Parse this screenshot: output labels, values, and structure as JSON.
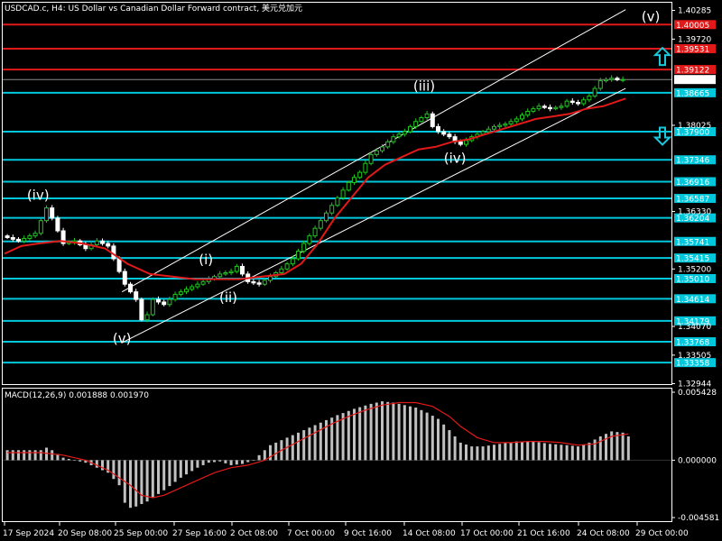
{
  "header": {
    "title": "USDCAD.c, H4:  US Dollar vs Canadian Dollar Forward contract, 美元兑加元"
  },
  "colors": {
    "background": "#000000",
    "cyan_level": "#00c8dc",
    "red_level": "#e11919",
    "bull_candle": "#22c322",
    "bear_candle": "#ffffff",
    "ma_line": "#e11919",
    "channel": "#ffffff",
    "macd_hist": "#c0c0c0",
    "macd_signal": "#e11919",
    "arrow": "#19c8dc"
  },
  "chart_data": [
    {
      "type": "candlestick",
      "symbol": "USDCAD.c",
      "timeframe": "H4",
      "ylim": [
        1.32944,
        1.40285
      ],
      "x_tick_labels": [
        "17 Sep 2024",
        "20 Sep 08:00",
        "25 Sep 00:00",
        "27 Sep 16:00",
        "2 Oct 08:00",
        "7 Oct 00:00",
        "9 Oct 16:00",
        "14 Oct 08:00",
        "17 Oct 00:00",
        "21 Oct 16:00",
        "24 Oct 08:00",
        "29 Oct 00:00"
      ],
      "price_ticks": [
        "1.40285",
        "1.39720",
        "1.38025",
        "1.36330",
        "1.35200",
        "1.34070",
        "1.33505",
        "1.32944"
      ],
      "current_price": "1.38925",
      "levels": [
        {
          "price": 1.40005,
          "label": "1.40005",
          "color": "red"
        },
        {
          "price": 1.39531,
          "label": "1.39531",
          "color": "red"
        },
        {
          "price": 1.39122,
          "label": "1.39122",
          "color": "red"
        },
        {
          "price": 1.38665,
          "label": "1.38665",
          "color": "cyan"
        },
        {
          "price": 1.379,
          "label": "1.37900",
          "color": "cyan"
        },
        {
          "price": 1.37346,
          "label": "1.37346",
          "color": "cyan"
        },
        {
          "price": 1.36916,
          "label": "1.36916",
          "color": "cyan"
        },
        {
          "price": 1.36587,
          "label": "1.36587",
          "color": "cyan"
        },
        {
          "price": 1.36204,
          "label": "1.36204",
          "color": "cyan"
        },
        {
          "price": 1.35741,
          "label": "1.35741",
          "color": "cyan"
        },
        {
          "price": 1.35415,
          "label": "1.35415",
          "color": "cyan"
        },
        {
          "price": 1.3501,
          "label": "1.35010",
          "color": "cyan"
        },
        {
          "price": 1.34614,
          "label": "1.34614",
          "color": "cyan"
        },
        {
          "price": 1.34179,
          "label": "1.34179",
          "color": "cyan"
        },
        {
          "price": 1.33768,
          "label": "1.33768",
          "color": "cyan"
        },
        {
          "price": 1.33358,
          "label": "1.33358",
          "color": "cyan"
        }
      ],
      "price_path": [
        [
          0,
          1.3585
        ],
        [
          3,
          1.3575
        ],
        [
          6,
          1.359
        ],
        [
          8,
          1.364
        ],
        [
          9,
          1.362
        ],
        [
          11,
          1.357
        ],
        [
          13,
          1.3575
        ],
        [
          15,
          1.356
        ],
        [
          17,
          1.3575
        ],
        [
          19,
          1.3565
        ],
        [
          20,
          1.354
        ],
        [
          22,
          1.349
        ],
        [
          24,
          1.346
        ],
        [
          25,
          1.342
        ],
        [
          26,
          1.343
        ],
        [
          27,
          1.346
        ],
        [
          29,
          1.345
        ],
        [
          31,
          1.347
        ],
        [
          33,
          1.348
        ],
        [
          35,
          1.349
        ],
        [
          37,
          1.35
        ],
        [
          39,
          1.351
        ],
        [
          41,
          1.3515
        ],
        [
          42,
          1.3525
        ],
        [
          43,
          1.351
        ],
        [
          44,
          1.3495
        ],
        [
          46,
          1.349
        ],
        [
          48,
          1.3505
        ],
        [
          50,
          1.352
        ],
        [
          52,
          1.354
        ],
        [
          54,
          1.357
        ],
        [
          56,
          1.36
        ],
        [
          58,
          1.363
        ],
        [
          60,
          1.366
        ],
        [
          62,
          1.369
        ],
        [
          64,
          1.371
        ],
        [
          66,
          1.3745
        ],
        [
          68,
          1.376
        ],
        [
          70,
          1.378
        ],
        [
          72,
          1.379
        ],
        [
          74,
          1.381
        ],
        [
          76,
          1.3825
        ],
        [
          77,
          1.38
        ],
        [
          78,
          1.379
        ],
        [
          80,
          1.378
        ],
        [
          81,
          1.377
        ],
        [
          82,
          1.3765
        ],
        [
          84,
          1.378
        ],
        [
          86,
          1.379
        ],
        [
          88,
          1.38
        ],
        [
          90,
          1.3805
        ],
        [
          92,
          1.3815
        ],
        [
          94,
          1.383
        ],
        [
          96,
          1.384
        ],
        [
          98,
          1.3835
        ],
        [
          100,
          1.384
        ],
        [
          101,
          1.385
        ],
        [
          103,
          1.3845
        ],
        [
          105,
          1.386
        ],
        [
          106,
          1.3875
        ],
        [
          107,
          1.389
        ],
        [
          109,
          1.3895
        ],
        [
          110,
          1.3892
        ],
        [
          111,
          1.38925
        ]
      ],
      "moving_average_path": [
        [
          0,
          1.355
        ],
        [
          3,
          1.3565
        ],
        [
          6,
          1.357
        ],
        [
          10,
          1.3575
        ],
        [
          14,
          1.357
        ],
        [
          18,
          1.356
        ],
        [
          22,
          1.353
        ],
        [
          26,
          1.351
        ],
        [
          30,
          1.3505
        ],
        [
          34,
          1.35
        ],
        [
          38,
          1.35
        ],
        [
          42,
          1.35
        ],
        [
          46,
          1.3505
        ],
        [
          50,
          1.351
        ],
        [
          53,
          1.353
        ],
        [
          56,
          1.357
        ],
        [
          59,
          1.362
        ],
        [
          62,
          1.366
        ],
        [
          65,
          1.37
        ],
        [
          68,
          1.3725
        ],
        [
          71,
          1.374
        ],
        [
          74,
          1.3755
        ],
        [
          77,
          1.376
        ],
        [
          80,
          1.377
        ],
        [
          83,
          1.3775
        ],
        [
          86,
          1.3785
        ],
        [
          89,
          1.3795
        ],
        [
          92,
          1.3805
        ],
        [
          95,
          1.3815
        ],
        [
          98,
          1.382
        ],
        [
          101,
          1.3825
        ],
        [
          104,
          1.3835
        ],
        [
          107,
          1.384
        ],
        [
          111,
          1.3855
        ]
      ],
      "channel": {
        "upper": [
          [
            21,
            1.3475
          ],
          [
            111,
            1.403
          ]
        ],
        "lower": [
          [
            21,
            1.3375
          ],
          [
            111,
            1.3875
          ]
        ]
      },
      "wave_labels": [
        {
          "text": "(iv)",
          "bar": 6.0,
          "price": 1.3656
        },
        {
          "text": "(v)",
          "bar": 21.0,
          "price": 1.33745
        },
        {
          "text": "(i)",
          "bar": 36.0,
          "price": 1.35295
        },
        {
          "text": "(ii)",
          "bar": 40.0,
          "price": 1.34545
        },
        {
          "text": "(iii)",
          "bar": 75.0,
          "price": 1.38705
        },
        {
          "text": "(iv)",
          "bar": 80.5,
          "price": 1.37285
        },
        {
          "text": "(v)",
          "bar": 115.5,
          "price": 1.40075
        }
      ],
      "arrows": [
        {
          "direction": "up",
          "price": 1.3937
        },
        {
          "direction": "down",
          "price": 1.3782
        }
      ]
    },
    {
      "type": "histogram",
      "indicator_label": "MACD(12,26,9) 0.001888 0.001970",
      "ylim": [
        -0.004581,
        0.005428
      ],
      "y_tick_labels": [
        "0.005428",
        "0.000000",
        "-0.004581"
      ],
      "histogram_path": [
        [
          0,
          0.0008
        ],
        [
          6,
          0.0008
        ],
        [
          7,
          0.001
        ],
        [
          8,
          0.0008
        ],
        [
          10,
          0.0002
        ],
        [
          14,
          -0.0002
        ],
        [
          18,
          -0.001
        ],
        [
          20,
          -0.002
        ],
        [
          21,
          -0.0034
        ],
        [
          22,
          -0.0038
        ],
        [
          23,
          -0.0037
        ],
        [
          25,
          -0.0033
        ],
        [
          28,
          -0.0024
        ],
        [
          31,
          -0.0014
        ],
        [
          34,
          -0.0006
        ],
        [
          36,
          -0.0002
        ],
        [
          38,
          -0.0001
        ],
        [
          40,
          -0.0004
        ],
        [
          42,
          -0.0003
        ],
        [
          44,
          0.0
        ],
        [
          47,
          0.0012
        ],
        [
          50,
          0.0018
        ],
        [
          53,
          0.0024
        ],
        [
          56,
          0.003
        ],
        [
          59,
          0.0036
        ],
        [
          62,
          0.0041
        ],
        [
          65,
          0.0045
        ],
        [
          67,
          0.0047
        ],
        [
          69,
          0.0046
        ],
        [
          71,
          0.0044
        ],
        [
          73,
          0.0042
        ],
        [
          75,
          0.0038
        ],
        [
          77,
          0.0033
        ],
        [
          79,
          0.0024
        ],
        [
          81,
          0.0014
        ],
        [
          83,
          0.0011
        ],
        [
          85,
          0.0011
        ],
        [
          88,
          0.0013
        ],
        [
          91,
          0.0015
        ],
        [
          94,
          0.0015
        ],
        [
          97,
          0.0013
        ],
        [
          100,
          0.0012
        ],
        [
          102,
          0.0011
        ],
        [
          104,
          0.0014
        ],
        [
          106,
          0.0019
        ],
        [
          108,
          0.0023
        ],
        [
          110,
          0.0022
        ],
        [
          111,
          0.0019
        ]
      ],
      "signal_path": [
        [
          0,
          0.0006
        ],
        [
          6,
          0.0006
        ],
        [
          10,
          0.0004
        ],
        [
          14,
          0.0
        ],
        [
          18,
          -0.0008
        ],
        [
          22,
          -0.002
        ],
        [
          24,
          -0.0028
        ],
        [
          26,
          -0.003
        ],
        [
          28,
          -0.0028
        ],
        [
          31,
          -0.0022
        ],
        [
          34,
          -0.0016
        ],
        [
          37,
          -0.001
        ],
        [
          40,
          -0.0006
        ],
        [
          43,
          -0.0004
        ],
        [
          46,
          0.0
        ],
        [
          49,
          0.0008
        ],
        [
          52,
          0.0015
        ],
        [
          55,
          0.0022
        ],
        [
          58,
          0.0029
        ],
        [
          61,
          0.0035
        ],
        [
          64,
          0.004
        ],
        [
          67,
          0.0044
        ],
        [
          70,
          0.0046
        ],
        [
          73,
          0.0046
        ],
        [
          76,
          0.0043
        ],
        [
          79,
          0.0035
        ],
        [
          81,
          0.0027
        ],
        [
          84,
          0.0018
        ],
        [
          87,
          0.0014
        ],
        [
          90,
          0.0014
        ],
        [
          93,
          0.0015
        ],
        [
          96,
          0.0015
        ],
        [
          99,
          0.0014
        ],
        [
          102,
          0.0012
        ],
        [
          105,
          0.0013
        ],
        [
          108,
          0.0019
        ],
        [
          111,
          0.0021
        ]
      ]
    }
  ]
}
